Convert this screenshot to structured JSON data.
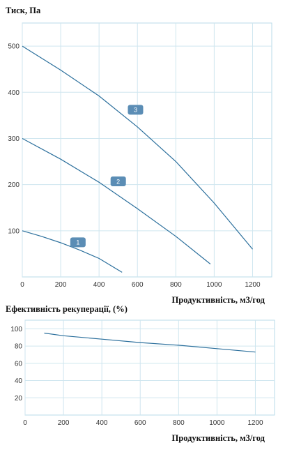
{
  "chart_data": [
    {
      "type": "line",
      "ylabel": "Тиск, Па",
      "xlabel": "Продуктивність, м3/год",
      "xlim": [
        0,
        1300
      ],
      "ylim": [
        0,
        550
      ],
      "xticks": [
        0,
        200,
        400,
        600,
        800,
        1000,
        1200
      ],
      "yticks": [
        100,
        200,
        300,
        400,
        500
      ],
      "grid": true,
      "line_color": "#2b6f9c",
      "badge_color": "#5b8db5",
      "series": [
        {
          "name": "1",
          "x": [
            0,
            100,
            200,
            300,
            400,
            520
          ],
          "y": [
            100,
            88,
            74,
            58,
            40,
            10
          ]
        },
        {
          "name": "2",
          "x": [
            0,
            200,
            400,
            600,
            800,
            980
          ],
          "y": [
            300,
            255,
            205,
            148,
            88,
            28
          ]
        },
        {
          "name": "3",
          "x": [
            0,
            200,
            400,
            600,
            800,
            1000,
            1200
          ],
          "y": [
            500,
            448,
            392,
            325,
            250,
            160,
            60
          ]
        }
      ],
      "annotations": [
        {
          "text": "1",
          "x": 290,
          "y": 75
        },
        {
          "text": "2",
          "x": 500,
          "y": 207
        },
        {
          "text": "3",
          "x": 590,
          "y": 362
        }
      ]
    },
    {
      "type": "line",
      "title": "Ефективність рекуперації, (%)",
      "xlabel": "Продуктивність, м3/год",
      "xlim": [
        0,
        1300
      ],
      "ylim": [
        0,
        110
      ],
      "xticks": [
        0,
        200,
        400,
        600,
        800,
        1000,
        1200
      ],
      "yticks": [
        20,
        40,
        60,
        80,
        100
      ],
      "grid": true,
      "line_color": "#2b6f9c",
      "series": [
        {
          "x": [
            100,
            200,
            400,
            600,
            800,
            1000,
            1200
          ],
          "y": [
            95,
            92,
            88,
            84,
            81,
            77,
            73
          ]
        }
      ]
    }
  ]
}
